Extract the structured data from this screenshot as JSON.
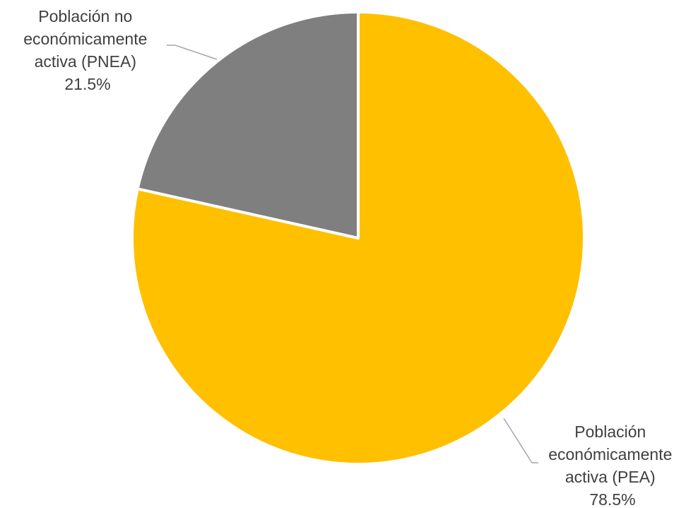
{
  "chart_data": {
    "type": "pie",
    "slices": [
      {
        "label_lines": [
          "Población",
          "económicamente",
          "activa (PEA)"
        ],
        "value_label": "78.5%",
        "value": 78.5,
        "color": "#ffc000"
      },
      {
        "label_lines": [
          "Población no",
          "económicamente",
          "activa (PNEA)"
        ],
        "value_label": "21.5%",
        "value": 21.5,
        "color": "#7f7f7f"
      }
    ],
    "leader_line_color": "#a6a6a6",
    "label_color": "#404040",
    "slice_border_color": "#ffffff"
  }
}
